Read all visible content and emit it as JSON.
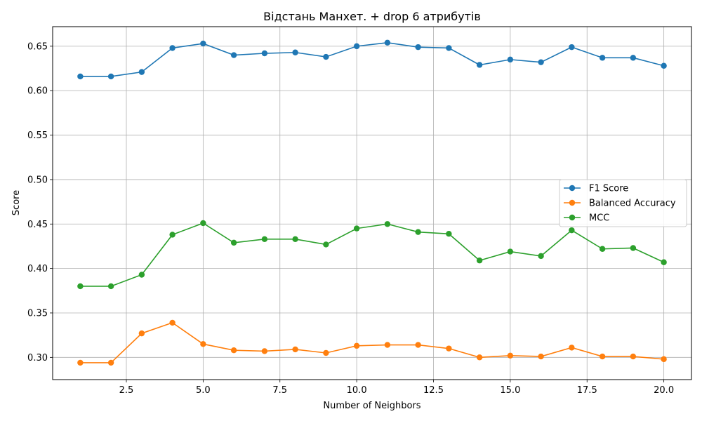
{
  "chart_data": {
    "type": "line",
    "title": "Відстань Манхет. + drop 6 атрибутів",
    "xlabel": "Number of Neighbors",
    "ylabel": "Score",
    "xlim": [
      0.1,
      20.9
    ],
    "ylim": [
      0.275,
      0.672
    ],
    "xticks": [
      2.5,
      5.0,
      7.5,
      10.0,
      12.5,
      15.0,
      17.5,
      20.0
    ],
    "xtick_labels": [
      "2.5",
      "5.0",
      "7.5",
      "10.0",
      "12.5",
      "15.0",
      "17.5",
      "20.0"
    ],
    "yticks": [
      0.3,
      0.35,
      0.4,
      0.45,
      0.5,
      0.55,
      0.6,
      0.65
    ],
    "ytick_labels": [
      "0.30",
      "0.35",
      "0.40",
      "0.45",
      "0.50",
      "0.55",
      "0.60",
      "0.65"
    ],
    "grid": true,
    "legend_position": "center-right",
    "x": [
      1,
      2,
      3,
      4,
      5,
      6,
      7,
      8,
      9,
      10,
      11,
      12,
      13,
      14,
      15,
      16,
      17,
      18,
      19,
      20
    ],
    "series": [
      {
        "name": "F1 Score",
        "color": "#1f77b4",
        "values": [
          0.616,
          0.616,
          0.621,
          0.648,
          0.653,
          0.64,
          0.642,
          0.643,
          0.638,
          0.65,
          0.654,
          0.649,
          0.648,
          0.629,
          0.635,
          0.632,
          0.649,
          0.637,
          0.637,
          0.628
        ]
      },
      {
        "name": "Balanced Accuracy",
        "color": "#ff7f0e",
        "values": [
          0.294,
          0.294,
          0.327,
          0.339,
          0.315,
          0.308,
          0.307,
          0.309,
          0.305,
          0.313,
          0.314,
          0.314,
          0.31,
          0.3,
          0.302,
          0.301,
          0.311,
          0.301,
          0.301,
          0.298
        ]
      },
      {
        "name": "MCC",
        "color": "#2ca02c",
        "values": [
          0.38,
          0.38,
          0.393,
          0.438,
          0.451,
          0.429,
          0.433,
          0.433,
          0.427,
          0.445,
          0.45,
          0.441,
          0.439,
          0.409,
          0.419,
          0.414,
          0.443,
          0.422,
          0.423,
          0.407
        ]
      }
    ]
  }
}
